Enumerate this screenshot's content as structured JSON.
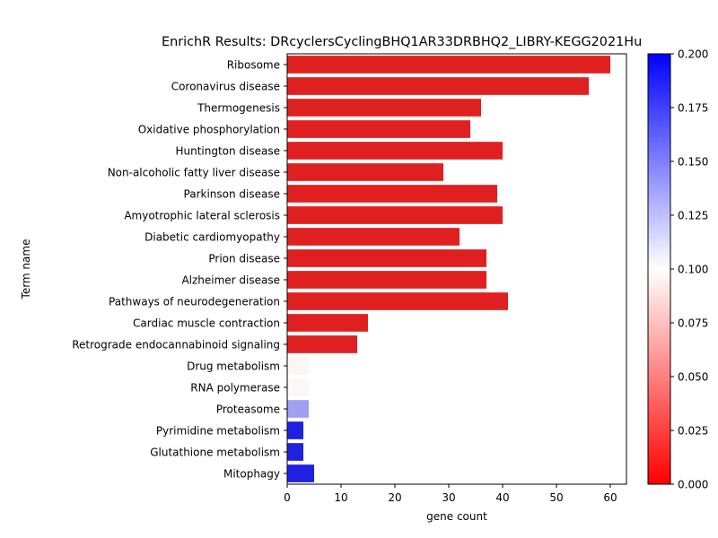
{
  "chart_data": {
    "type": "bar",
    "orientation": "horizontal",
    "title": "EnrichR Results: DRcyclersCyclingBHQ1AR33DRBHQ2_LIBRY-KEGG2021Hu",
    "xlabel": "gene count",
    "ylabel": "Term name",
    "xlim": [
      0,
      63
    ],
    "xticks": [
      "0",
      "10",
      "20",
      "30",
      "40",
      "50",
      "60"
    ],
    "categories": [
      "Ribosome",
      "Coronavirus disease",
      "Thermogenesis",
      "Oxidative phosphorylation",
      "Huntington disease",
      "Non-alcoholic fatty liver disease",
      "Parkinson disease",
      "Amyotrophic lateral sclerosis",
      "Diabetic cardiomyopathy",
      "Prion disease",
      "Alzheimer disease",
      "Pathways of neurodegeneration",
      "Cardiac muscle contraction",
      "Retrograde endocannabinoid signaling",
      "Drug metabolism",
      "RNA polymerase",
      "Proteasome",
      "Pyrimidine metabolism",
      "Glutathione metabolism",
      "Mitophagy"
    ],
    "values": [
      60,
      56,
      36,
      34,
      40,
      29,
      39,
      40,
      32,
      37,
      37,
      41,
      15,
      13,
      4,
      4,
      4,
      3,
      3,
      5
    ],
    "colors": [
      "#e02020",
      "#e02020",
      "#e02020",
      "#e02020",
      "#e02020",
      "#e02020",
      "#e02020",
      "#e02020",
      "#e02020",
      "#e02020",
      "#e02020",
      "#e02020",
      "#e02020",
      "#e02020",
      "#fdf6f6",
      "#fdf6f6",
      "#a0a0f0",
      "#2020e0",
      "#2020e0",
      "#2020e0"
    ],
    "colorbar": {
      "range": [
        0.0,
        0.2
      ],
      "ticks": [
        "0.000",
        "0.025",
        "0.050",
        "0.075",
        "0.100",
        "0.125",
        "0.150",
        "0.175",
        "0.200"
      ],
      "colormap": [
        "#ff0000",
        "#ffffff",
        "#0000ff"
      ]
    },
    "grid": false
  }
}
